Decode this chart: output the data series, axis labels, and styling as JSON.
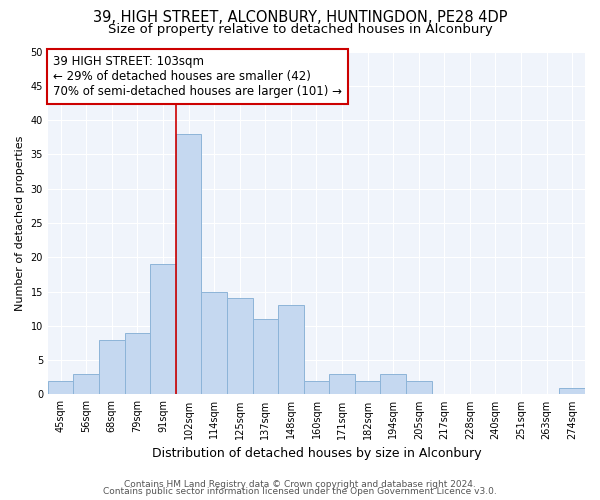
{
  "title": "39, HIGH STREET, ALCONBURY, HUNTINGDON, PE28 4DP",
  "subtitle": "Size of property relative to detached houses in Alconbury",
  "xlabel": "Distribution of detached houses by size in Alconbury",
  "ylabel": "Number of detached properties",
  "bins": [
    "45sqm",
    "56sqm",
    "68sqm",
    "79sqm",
    "91sqm",
    "102sqm",
    "114sqm",
    "125sqm",
    "137sqm",
    "148sqm",
    "160sqm",
    "171sqm",
    "182sqm",
    "194sqm",
    "205sqm",
    "217sqm",
    "228sqm",
    "240sqm",
    "251sqm",
    "263sqm",
    "274sqm"
  ],
  "values": [
    2,
    3,
    8,
    9,
    19,
    38,
    15,
    14,
    11,
    13,
    2,
    3,
    2,
    3,
    2,
    0,
    0,
    0,
    0,
    0,
    1
  ],
  "bar_color": "#c5d8f0",
  "bar_edge_color": "#8db4d8",
  "vline_index": 5,
  "vline_color": "#cc0000",
  "annotation_text": "39 HIGH STREET: 103sqm\n← 29% of detached houses are smaller (42)\n70% of semi-detached houses are larger (101) →",
  "annotation_box_color": "#ffffff",
  "annotation_box_edge": "#cc0000",
  "ylim": [
    0,
    50
  ],
  "yticks": [
    0,
    5,
    10,
    15,
    20,
    25,
    30,
    35,
    40,
    45,
    50
  ],
  "bg_color": "#ffffff",
  "plot_bg_color": "#f0f4fb",
  "grid_color": "#ffffff",
  "title_fontsize": 10.5,
  "subtitle_fontsize": 9.5,
  "xlabel_fontsize": 9,
  "ylabel_fontsize": 8,
  "tick_fontsize": 7,
  "annotation_fontsize": 8.5,
  "footer_fontsize": 6.5,
  "footer1": "Contains HM Land Registry data © Crown copyright and database right 2024.",
  "footer2": "Contains public sector information licensed under the Open Government Licence v3.0."
}
